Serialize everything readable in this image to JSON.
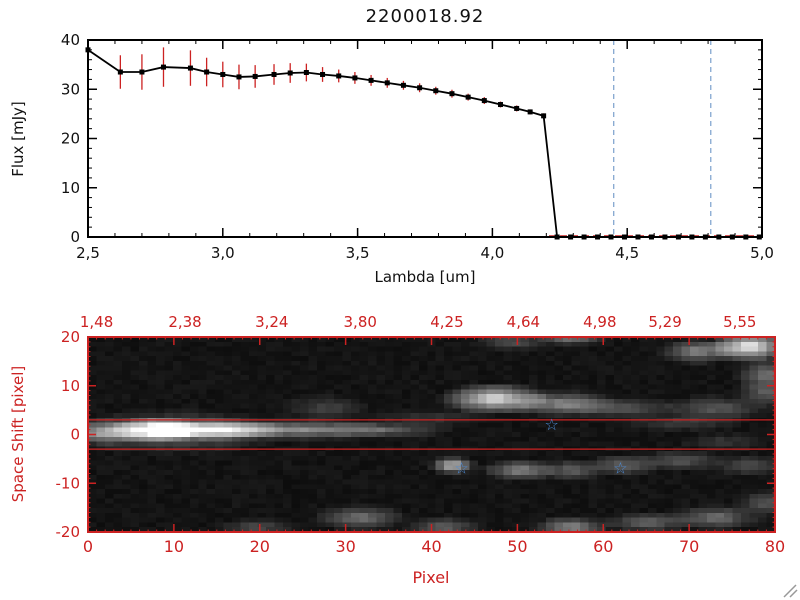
{
  "window": {
    "background": "#ffffff"
  },
  "colors": {
    "frame": "#000000",
    "axis_red": "#cc2222",
    "errorbar": "#cc2222",
    "marker": "#000000",
    "line": "#000000",
    "vline_blue": "#7aa0cc",
    "star_blue": "#4d8bd6"
  },
  "chart_data": [
    {
      "type": "line",
      "title": "2200018.92",
      "xlabel": "Lambda [um]",
      "ylabel": "Flux [mJy]",
      "xlim": [
        2.5,
        5.0
      ],
      "ylim": [
        0,
        40
      ],
      "xtick_values": [
        2.5,
        3.0,
        3.5,
        4.0,
        4.5,
        5.0
      ],
      "xtick_labels": [
        "2,5",
        "3,0",
        "3,5",
        "4,0",
        "4,5",
        "5,0"
      ],
      "ytick_values": [
        0,
        10,
        20,
        30,
        40
      ],
      "ytick_labels": [
        "0",
        "10",
        "20",
        "30",
        "40"
      ],
      "x": [
        2.5,
        2.62,
        2.7,
        2.78,
        2.88,
        2.94,
        3.0,
        3.06,
        3.12,
        3.19,
        3.25,
        3.31,
        3.37,
        3.43,
        3.49,
        3.55,
        3.61,
        3.67,
        3.73,
        3.79,
        3.85,
        3.91,
        3.97,
        4.03,
        4.09,
        4.14,
        4.19,
        4.24,
        4.29,
        4.34,
        4.39,
        4.44,
        4.49,
        4.54,
        4.59,
        4.64,
        4.69,
        4.74,
        4.79,
        4.84,
        4.89,
        4.94,
        4.99
      ],
      "y": [
        38.0,
        33.5,
        33.5,
        34.5,
        34.3,
        33.5,
        33.0,
        32.5,
        32.6,
        33.0,
        33.3,
        33.4,
        33.0,
        32.7,
        32.3,
        31.8,
        31.3,
        30.8,
        30.3,
        29.7,
        29.1,
        28.4,
        27.7,
        26.9,
        26.1,
        25.4,
        24.6,
        0,
        0,
        0,
        0,
        0,
        0,
        0,
        0,
        0,
        0,
        0,
        0,
        0,
        0,
        0,
        0
      ],
      "yerr": [
        0.8,
        3.4,
        3.6,
        4.0,
        3.6,
        2.9,
        2.6,
        2.5,
        2.3,
        2.1,
        2.0,
        1.8,
        1.5,
        1.3,
        1.2,
        1.1,
        1.0,
        0.9,
        0.9,
        0.8,
        0.8,
        0.7,
        0.7,
        0.6,
        0.6,
        0.5,
        0.5,
        0.3,
        0.3,
        0.3,
        0.3,
        0.3,
        0.3,
        0.3,
        0.3,
        0.3,
        0.3,
        0.3,
        0.3,
        0.3,
        0.3,
        0.3,
        0.3
      ],
      "vlines": {
        "values": [
          4.45,
          4.81
        ],
        "style": "dashed"
      },
      "zero_line": {
        "y": 0,
        "x_start": 4.21,
        "x_end": 4.99,
        "style": "dashed"
      }
    },
    {
      "type": "heatmap",
      "xlabel": "Pixel",
      "ylabel": "Space Shift [pixel]",
      "xlim": [
        0,
        80
      ],
      "ylim": [
        -20,
        20
      ],
      "xtick_values": [
        0,
        10,
        20,
        30,
        40,
        50,
        60,
        70,
        80
      ],
      "xtick_labels": [
        "0",
        "10",
        "20",
        "30",
        "40",
        "50",
        "60",
        "70",
        "80"
      ],
      "ytick_values": [
        -20,
        -10,
        0,
        10,
        20
      ],
      "ytick_labels": [
        "-20",
        "-10",
        "0",
        "10",
        "20"
      ],
      "top_axis": [
        {
          "p": 1.0,
          "label": "1,48"
        },
        {
          "p": 11.3,
          "label": "2,38"
        },
        {
          "p": 21.4,
          "label": "3,24"
        },
        {
          "p": 31.7,
          "label": "3,80"
        },
        {
          "p": 41.8,
          "label": "4,25"
        },
        {
          "p": 50.7,
          "label": "4,64"
        },
        {
          "p": 59.6,
          "label": "4,98"
        },
        {
          "p": 67.2,
          "label": "5,29"
        },
        {
          "p": 75.9,
          "label": "5,55"
        }
      ],
      "aperture_lines_y": [
        3,
        -3
      ],
      "stars": [
        {
          "x": 54,
          "y": 2
        },
        {
          "x": 43.5,
          "y": -7
        },
        {
          "x": 62,
          "y": -7
        }
      ],
      "blob_format": "x, y, intensity, rx, ry",
      "blobs": [
        [
          2,
          0,
          0.55,
          5,
          3
        ],
        [
          8,
          0.5,
          1.0,
          6,
          3
        ],
        [
          15,
          0.5,
          0.8,
          9,
          2.5
        ],
        [
          25,
          0.5,
          0.5,
          12,
          2.5
        ],
        [
          35,
          0.5,
          0.3,
          9,
          2
        ],
        [
          10,
          0,
          0.35,
          14,
          5
        ],
        [
          28,
          5,
          0.2,
          6,
          3
        ],
        [
          48,
          7,
          0.85,
          7,
          3.5
        ],
        [
          56,
          6,
          0.5,
          7,
          3
        ],
        [
          63,
          5,
          0.28,
          8,
          2.5
        ],
        [
          74,
          5,
          0.3,
          7,
          3
        ],
        [
          80,
          8,
          0.3,
          4,
          3
        ],
        [
          43,
          -7,
          0.75,
          3,
          2
        ],
        [
          51,
          -8,
          0.5,
          5,
          2.5
        ],
        [
          57,
          -8,
          0.35,
          4,
          2.5
        ],
        [
          63,
          -7,
          0.35,
          5,
          2.5
        ],
        [
          70,
          -6,
          0.28,
          6,
          2.5
        ],
        [
          78,
          -7,
          0.25,
          5,
          2.5
        ],
        [
          78,
          18,
          0.95,
          5,
          3.5
        ],
        [
          72,
          17,
          0.5,
          5,
          3
        ],
        [
          80,
          12,
          0.4,
          4,
          4
        ],
        [
          57,
          20,
          0.45,
          5,
          2
        ],
        [
          50,
          19,
          0.28,
          5,
          2
        ],
        [
          20,
          -20,
          0.25,
          5,
          2
        ],
        [
          32,
          -18,
          0.4,
          6,
          3
        ],
        [
          42,
          -20,
          0.35,
          5,
          2.5
        ],
        [
          57,
          -20,
          0.5,
          5,
          2.5
        ],
        [
          66,
          -19,
          0.35,
          6,
          2.5
        ],
        [
          74,
          -18,
          0.4,
          6,
          3
        ],
        [
          80,
          -15,
          0.3,
          4,
          3
        ],
        [
          70,
          2,
          0.2,
          8,
          2
        ],
        [
          40,
          3,
          0.15,
          8,
          2
        ],
        [
          75,
          -2,
          0.15,
          6,
          2
        ]
      ]
    }
  ]
}
